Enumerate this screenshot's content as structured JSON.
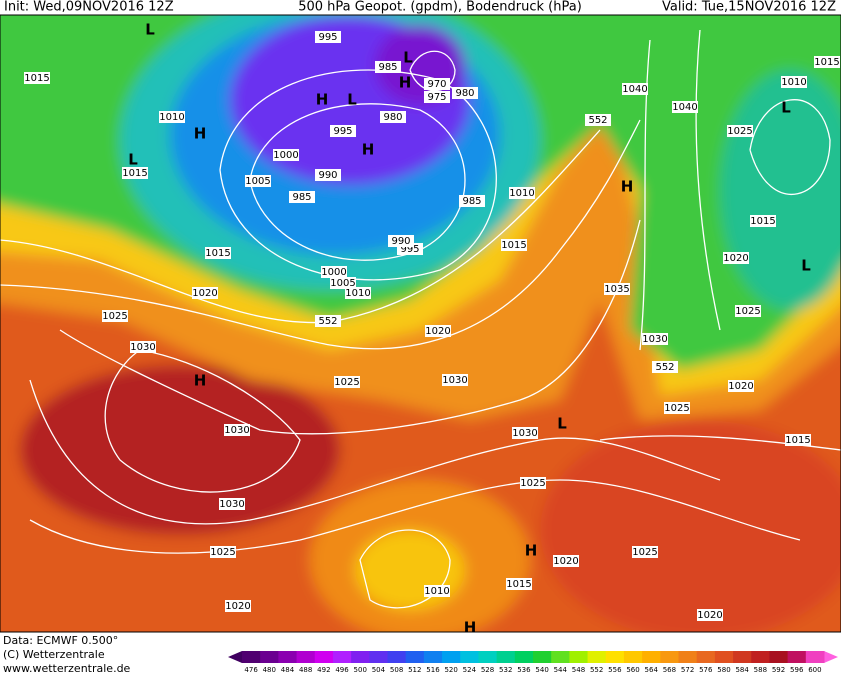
{
  "header": {
    "init": "Init: Wed,09NOV2016 12Z",
    "title": "500 hPa Geopot. (gpdm), Bodendruck (hPa)",
    "valid": "Valid: Tue,15NOV2016 12Z"
  },
  "footer": {
    "data": "Data: ECMWF  0.500°",
    "copyright": "(C) Wetterzentrale",
    "url": "www.wetterzentrale.de"
  },
  "colorbar": {
    "ticks": [
      476,
      480,
      484,
      488,
      492,
      496,
      500,
      504,
      508,
      512,
      516,
      520,
      524,
      528,
      532,
      536,
      540,
      544,
      548,
      552,
      556,
      560,
      564,
      568,
      572,
      576,
      580,
      584,
      588,
      592,
      596,
      600
    ],
    "colors": [
      "#500070",
      "#6a0090",
      "#8a00b0",
      "#b000d0",
      "#d000f0",
      "#b020ff",
      "#8020f0",
      "#6030f0",
      "#4040f0",
      "#2060f0",
      "#1080f0",
      "#00a0f0",
      "#00c0e0",
      "#00d0c0",
      "#00d090",
      "#00d060",
      "#20d030",
      "#60e020",
      "#a0f000",
      "#e0f000",
      "#ffe000",
      "#ffc800",
      "#ffb000",
      "#f89810",
      "#f08018",
      "#e86820",
      "#e05020",
      "#d03820",
      "#c02020",
      "#a81020",
      "#c01060",
      "#f040c0"
    ]
  },
  "isobar_labels": [
    "1015",
    "1010",
    "1015",
    "1015",
    "1020",
    "1025",
    "1030",
    "1025",
    "1030",
    "1030",
    "1025",
    "1020",
    "1010",
    "1015",
    "1020",
    "1025",
    "1030",
    "1030",
    "1020",
    "1015",
    "1010",
    "985",
    "995",
    "990",
    "1000",
    "1005",
    "1010",
    "552",
    "985",
    "1005",
    "1000",
    "990",
    "995",
    "980",
    "985",
    "970",
    "975",
    "980",
    "995",
    "552",
    "1040",
    "1040",
    "1035",
    "1030",
    "552",
    "1025",
    "1020",
    "1015",
    "1025",
    "1020",
    "1015",
    "1025",
    "1010",
    "1015",
    "1025",
    "1020"
  ],
  "pressure_centers": [
    "L",
    "L",
    "H",
    "L",
    "H",
    "H",
    "L",
    "H",
    "L",
    "H",
    "L",
    "H",
    "H",
    "L",
    "H"
  ]
}
